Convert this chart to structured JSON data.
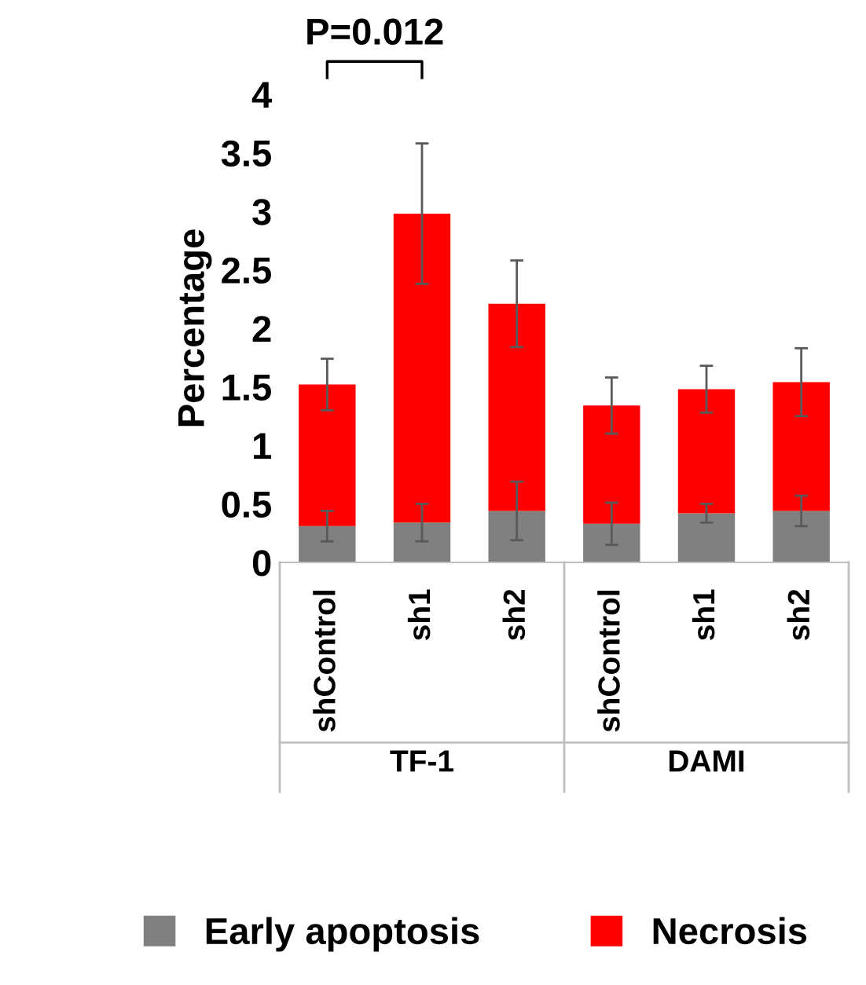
{
  "chart_data": {
    "type": "bar",
    "stacked": true,
    "ylabel": "Percentage",
    "categories": [
      "shControl",
      "sh1",
      "sh2",
      "shControl",
      "sh1",
      "sh2"
    ],
    "series": [
      {
        "name": "Early apoptosis",
        "color": "#808080",
        "values": [
          0.31,
          0.34,
          0.44,
          0.33,
          0.42,
          0.44
        ],
        "errors": [
          0.13,
          0.16,
          0.25,
          0.18,
          0.08,
          0.13
        ]
      },
      {
        "name": "Necrosis",
        "color": "#ff0000",
        "values": [
          1.21,
          2.64,
          1.77,
          1.01,
          1.06,
          1.1
        ],
        "errors": [
          0.22,
          0.6,
          0.37,
          0.24,
          0.2,
          0.29
        ]
      }
    ],
    "ylim": [
      0,
      4
    ],
    "yticks": [
      0,
      0.5,
      1,
      1.5,
      2,
      2.5,
      3,
      3.5,
      4
    ],
    "annotations": [
      "P=0.012",
      "TF-1",
      "DAMI"
    ],
    "legend": "bottom",
    "grid": false
  }
}
